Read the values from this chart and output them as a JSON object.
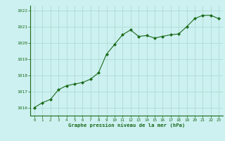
{
  "x": [
    0,
    1,
    2,
    3,
    4,
    5,
    6,
    7,
    8,
    9,
    10,
    11,
    12,
    13,
    14,
    15,
    16,
    17,
    18,
    19,
    20,
    21,
    22,
    23
  ],
  "y": [
    1016.0,
    1016.3,
    1016.5,
    1017.1,
    1017.35,
    1017.45,
    1017.55,
    1017.75,
    1018.15,
    1019.3,
    1019.9,
    1020.5,
    1020.8,
    1020.4,
    1020.45,
    1020.3,
    1020.4,
    1020.5,
    1020.55,
    1021.0,
    1021.5,
    1021.7,
    1021.7,
    1021.5
  ],
  "line_color": "#1a6b1a",
  "marker": "D",
  "marker_size": 2.0,
  "background_color": "#cdf0f0",
  "grid_color": "#a8d8d0",
  "xlabel": "Graphe pression niveau de la mer (hPa)",
  "xlabel_color": "#1a6b1a",
  "tick_color": "#1a6b1a",
  "ylim": [
    1015.5,
    1022.3
  ],
  "xlim": [
    -0.5,
    23.5
  ],
  "yticks": [
    1016,
    1017,
    1018,
    1019,
    1020,
    1021,
    1022
  ],
  "xticks": [
    0,
    1,
    2,
    3,
    4,
    5,
    6,
    7,
    8,
    9,
    10,
    11,
    12,
    13,
    14,
    15,
    16,
    17,
    18,
    19,
    20,
    21,
    22,
    23
  ]
}
